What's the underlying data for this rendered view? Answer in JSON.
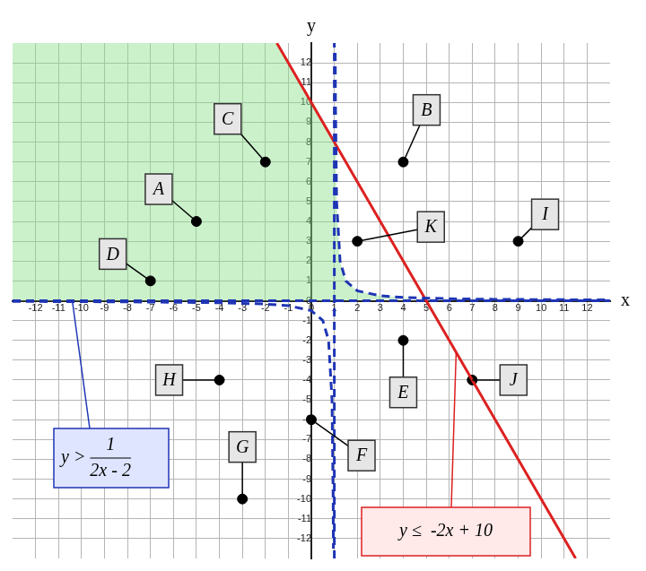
{
  "chart_data": {
    "type": "scatter",
    "x_label": "x",
    "y_label": "y",
    "xlim": [
      -13,
      13
    ],
    "ylim": [
      -13,
      13
    ],
    "xticks": [
      -12,
      -11,
      -10,
      -9,
      -8,
      -7,
      -6,
      -5,
      -4,
      -3,
      -2,
      -1,
      0,
      1,
      2,
      3,
      4,
      5,
      6,
      7,
      8,
      9,
      10,
      11,
      12
    ],
    "yticks": [
      -12,
      -11,
      -10,
      -9,
      -8,
      -7,
      -6,
      -5,
      -4,
      -3,
      -2,
      -1,
      0,
      1,
      2,
      3,
      4,
      5,
      6,
      7,
      8,
      9,
      10,
      11,
      12
    ],
    "grid": true,
    "shaded_region": {
      "color": "rgba(140, 225, 140, 0.45)",
      "x": [
        -13,
        -13,
        -1.5,
        1.064,
        1.1,
        1.25,
        1.5,
        2,
        3,
        4,
        4.937,
        1
      ],
      "values": [
        0,
        13,
        13,
        7.87,
        5,
        2,
        1,
        0.5,
        0.25,
        0.167,
        0.127,
        0
      ]
    },
    "series": [
      {
        "color": "#1f35b5",
        "line_style": "dashed",
        "x": [
          -13,
          -12,
          -8,
          -4,
          -2,
          -1,
          0,
          0.5,
          0.75,
          0.9,
          0.95,
          0.96,
          1,
          1.04,
          1.05,
          1.1,
          1.25,
          1.5,
          2,
          3,
          4,
          6,
          8,
          12,
          13
        ],
        "values": [
          -0.036,
          -0.038,
          -0.056,
          -0.1,
          -0.167,
          -0.25,
          -0.5,
          -1,
          -2,
          -5,
          -10,
          -12.5,
          null,
          12.5,
          10,
          5,
          2,
          1,
          0.5,
          0.25,
          0.167,
          0.1,
          0.071,
          0.045,
          0.042
        ]
      },
      {
        "color": "#1f35b5",
        "line_style": "dashed",
        "x": [
          1,
          1
        ],
        "values": [
          -13,
          13
        ]
      },
      {
        "color": "#1f35b5",
        "line_style": "dashed",
        "x": [
          -13,
          13
        ],
        "values": [
          0,
          0
        ]
      },
      {
        "color": "#dd2020",
        "line_style": "solid",
        "x": [
          -1.5,
          11.5
        ],
        "values": [
          13,
          -13
        ]
      }
    ],
    "points": {
      "color": "#000000",
      "labels": [
        "A",
        "B",
        "C",
        "D",
        "E",
        "F",
        "G",
        "H",
        "I",
        "J",
        "K"
      ],
      "x": [
        -5,
        4,
        -2,
        -7,
        4,
        0,
        -3,
        -4,
        9,
        7,
        2
      ],
      "values": [
        4,
        7,
        7,
        1,
        -2,
        -6,
        -10,
        -4,
        3,
        -4,
        3
      ]
    },
    "annotations": [
      {
        "lhs": "y >",
        "numerator": "1",
        "denominator": "2x - 2",
        "color": "#1f35b5"
      },
      {
        "text": "y ≤  -2x + 10",
        "color": "#dd2020"
      }
    ]
  }
}
